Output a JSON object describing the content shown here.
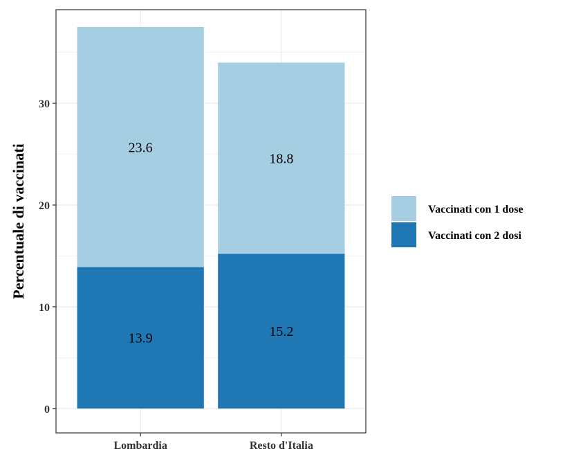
{
  "chart_data": {
    "type": "bar",
    "stacked": true,
    "categories": [
      "Lombardia",
      "Resto d'Italia"
    ],
    "series": [
      {
        "name": "Vaccinati con 2 dosi",
        "values": [
          13.9,
          15.2
        ],
        "color": "#1f78b4"
      },
      {
        "name": "Vaccinati con 1 dose",
        "values": [
          23.6,
          18.8
        ],
        "color": "#a6cee3"
      }
    ],
    "data_labels": [
      [
        "13.9",
        "15.2"
      ],
      [
        "23.6",
        "18.8"
      ]
    ],
    "title": "",
    "xlabel": "",
    "ylabel": "Percentuale di vaccinati",
    "ylim": [
      -2.4,
      39.2
    ],
    "yticks": [
      0,
      10,
      20,
      30
    ],
    "grid": true,
    "legend_position": "right",
    "legend_order": [
      "Vaccinati con 1 dose",
      "Vaccinati con 2 dosi"
    ]
  }
}
